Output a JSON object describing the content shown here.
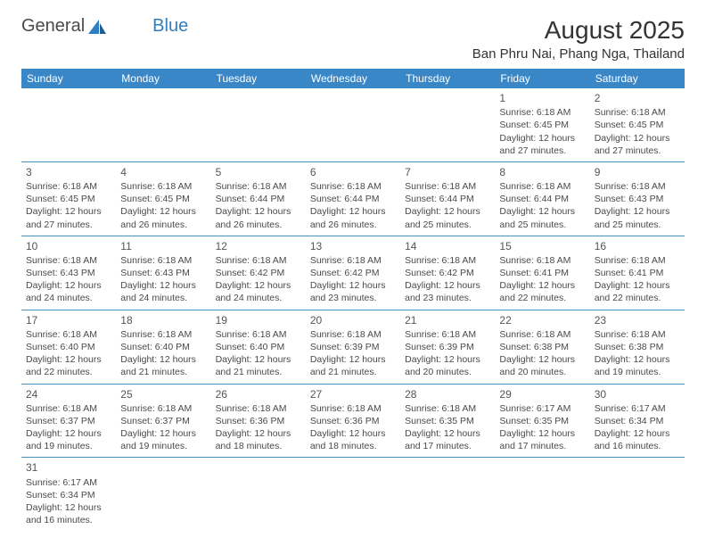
{
  "logo": {
    "text_general": "General",
    "text_blue": "Blue"
  },
  "title": "August 2025",
  "location": "Ban Phru Nai, Phang Nga, Thailand",
  "colors": {
    "header_bg": "#3a87c7",
    "header_text": "#ffffff",
    "cell_border": "#4a8fc4",
    "text": "#4a4a4a",
    "logo_blue": "#2f7ec2"
  },
  "weekdays": [
    "Sunday",
    "Monday",
    "Tuesday",
    "Wednesday",
    "Thursday",
    "Friday",
    "Saturday"
  ],
  "layout": {
    "first_weekday_index": 5,
    "days_in_month": 31,
    "rows": 6,
    "cols": 7
  },
  "days": {
    "1": {
      "sunrise": "6:18 AM",
      "sunset": "6:45 PM",
      "daylight": "12 hours and 27 minutes."
    },
    "2": {
      "sunrise": "6:18 AM",
      "sunset": "6:45 PM",
      "daylight": "12 hours and 27 minutes."
    },
    "3": {
      "sunrise": "6:18 AM",
      "sunset": "6:45 PM",
      "daylight": "12 hours and 27 minutes."
    },
    "4": {
      "sunrise": "6:18 AM",
      "sunset": "6:45 PM",
      "daylight": "12 hours and 26 minutes."
    },
    "5": {
      "sunrise": "6:18 AM",
      "sunset": "6:44 PM",
      "daylight": "12 hours and 26 minutes."
    },
    "6": {
      "sunrise": "6:18 AM",
      "sunset": "6:44 PM",
      "daylight": "12 hours and 26 minutes."
    },
    "7": {
      "sunrise": "6:18 AM",
      "sunset": "6:44 PM",
      "daylight": "12 hours and 25 minutes."
    },
    "8": {
      "sunrise": "6:18 AM",
      "sunset": "6:44 PM",
      "daylight": "12 hours and 25 minutes."
    },
    "9": {
      "sunrise": "6:18 AM",
      "sunset": "6:43 PM",
      "daylight": "12 hours and 25 minutes."
    },
    "10": {
      "sunrise": "6:18 AM",
      "sunset": "6:43 PM",
      "daylight": "12 hours and 24 minutes."
    },
    "11": {
      "sunrise": "6:18 AM",
      "sunset": "6:43 PM",
      "daylight": "12 hours and 24 minutes."
    },
    "12": {
      "sunrise": "6:18 AM",
      "sunset": "6:42 PM",
      "daylight": "12 hours and 24 minutes."
    },
    "13": {
      "sunrise": "6:18 AM",
      "sunset": "6:42 PM",
      "daylight": "12 hours and 23 minutes."
    },
    "14": {
      "sunrise": "6:18 AM",
      "sunset": "6:42 PM",
      "daylight": "12 hours and 23 minutes."
    },
    "15": {
      "sunrise": "6:18 AM",
      "sunset": "6:41 PM",
      "daylight": "12 hours and 22 minutes."
    },
    "16": {
      "sunrise": "6:18 AM",
      "sunset": "6:41 PM",
      "daylight": "12 hours and 22 minutes."
    },
    "17": {
      "sunrise": "6:18 AM",
      "sunset": "6:40 PM",
      "daylight": "12 hours and 22 minutes."
    },
    "18": {
      "sunrise": "6:18 AM",
      "sunset": "6:40 PM",
      "daylight": "12 hours and 21 minutes."
    },
    "19": {
      "sunrise": "6:18 AM",
      "sunset": "6:40 PM",
      "daylight": "12 hours and 21 minutes."
    },
    "20": {
      "sunrise": "6:18 AM",
      "sunset": "6:39 PM",
      "daylight": "12 hours and 21 minutes."
    },
    "21": {
      "sunrise": "6:18 AM",
      "sunset": "6:39 PM",
      "daylight": "12 hours and 20 minutes."
    },
    "22": {
      "sunrise": "6:18 AM",
      "sunset": "6:38 PM",
      "daylight": "12 hours and 20 minutes."
    },
    "23": {
      "sunrise": "6:18 AM",
      "sunset": "6:38 PM",
      "daylight": "12 hours and 19 minutes."
    },
    "24": {
      "sunrise": "6:18 AM",
      "sunset": "6:37 PM",
      "daylight": "12 hours and 19 minutes."
    },
    "25": {
      "sunrise": "6:18 AM",
      "sunset": "6:37 PM",
      "daylight": "12 hours and 19 minutes."
    },
    "26": {
      "sunrise": "6:18 AM",
      "sunset": "6:36 PM",
      "daylight": "12 hours and 18 minutes."
    },
    "27": {
      "sunrise": "6:18 AM",
      "sunset": "6:36 PM",
      "daylight": "12 hours and 18 minutes."
    },
    "28": {
      "sunrise": "6:18 AM",
      "sunset": "6:35 PM",
      "daylight": "12 hours and 17 minutes."
    },
    "29": {
      "sunrise": "6:17 AM",
      "sunset": "6:35 PM",
      "daylight": "12 hours and 17 minutes."
    },
    "30": {
      "sunrise": "6:17 AM",
      "sunset": "6:34 PM",
      "daylight": "12 hours and 16 minutes."
    },
    "31": {
      "sunrise": "6:17 AM",
      "sunset": "6:34 PM",
      "daylight": "12 hours and 16 minutes."
    }
  },
  "labels": {
    "sunrise": "Sunrise: ",
    "sunset": "Sunset: ",
    "daylight": "Daylight: "
  }
}
